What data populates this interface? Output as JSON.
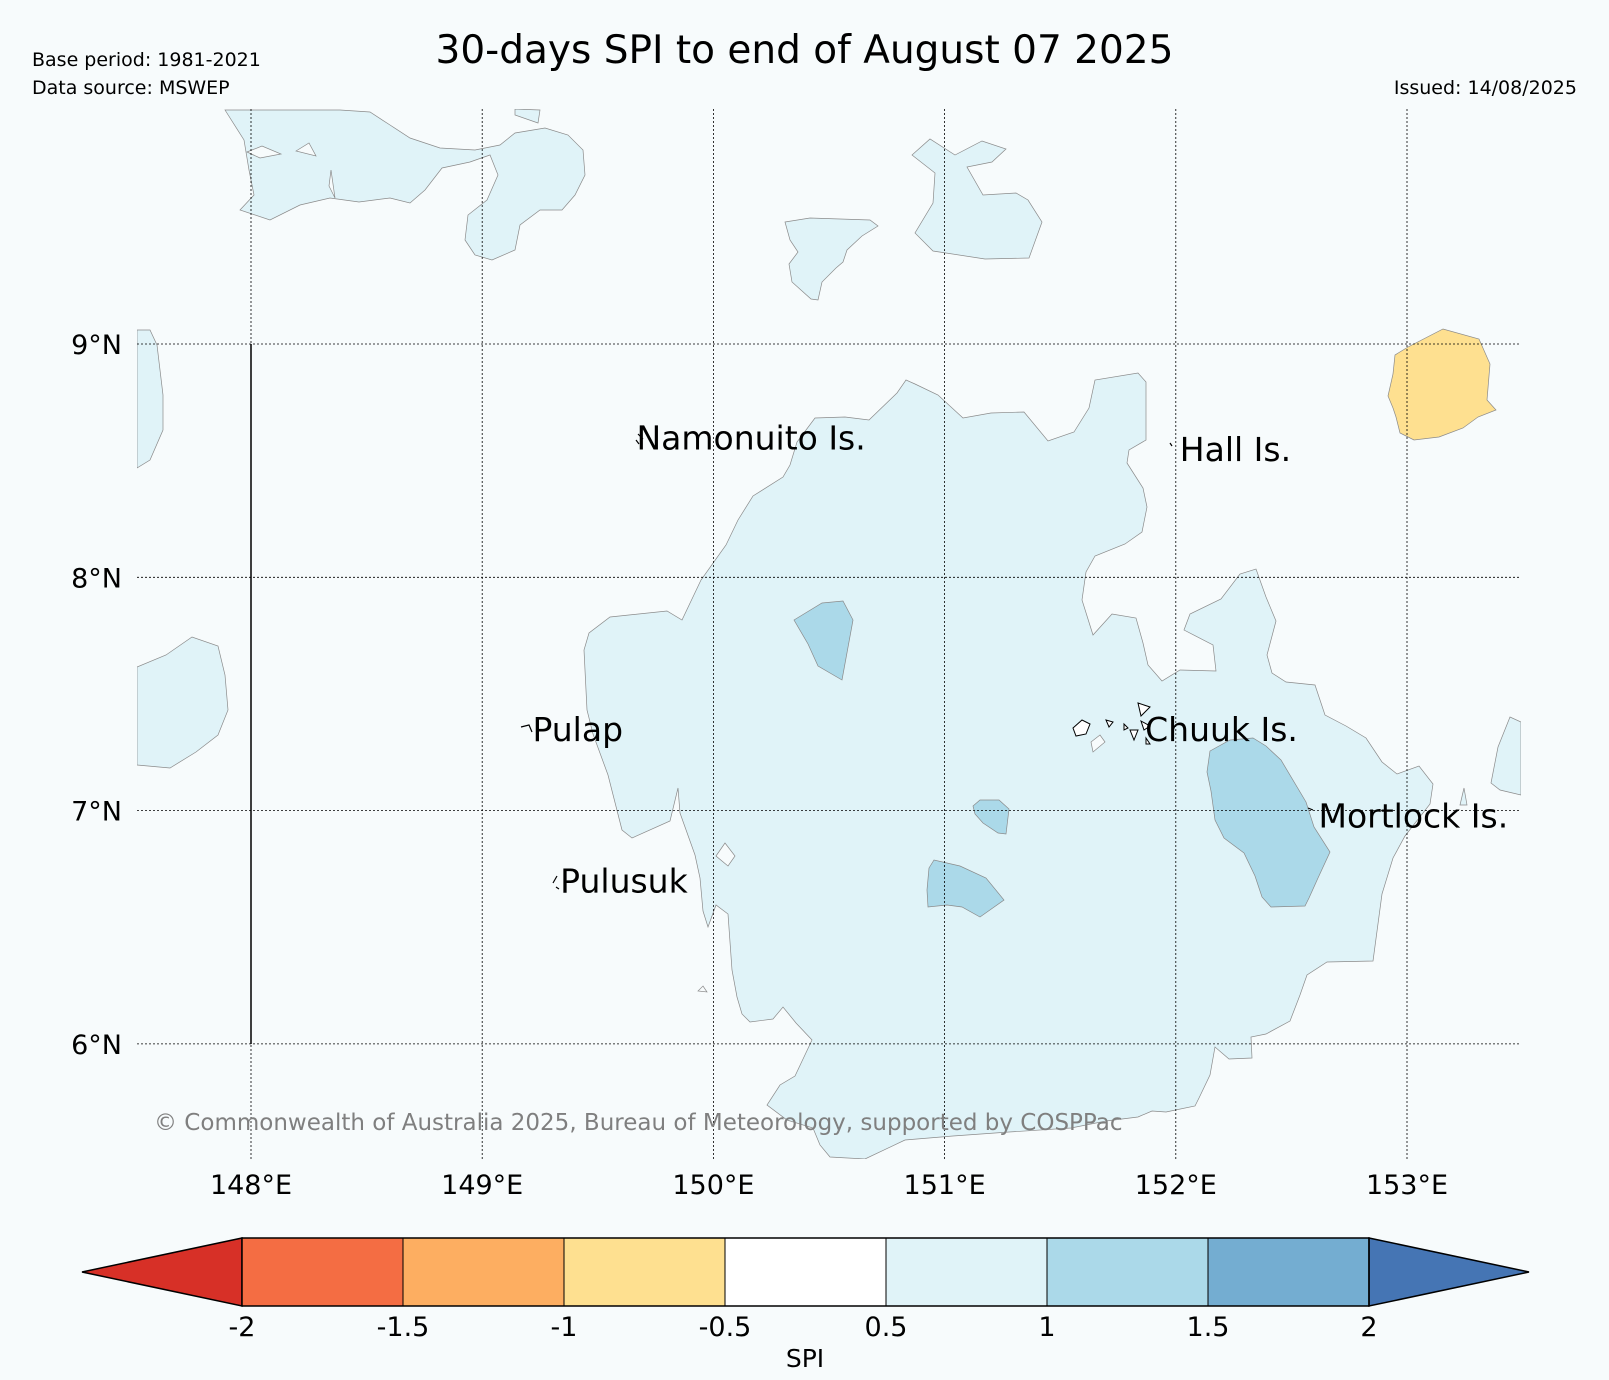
{
  "header": {
    "title": "30-days SPI to end of August 07 2025",
    "base_period": "Base period: 1981-2021",
    "data_source": "Data source: MSWEP",
    "issued": "Issued: 14/08/2025"
  },
  "map": {
    "lon_ticks": [
      "148°E",
      "149°E",
      "150°E",
      "151°E",
      "152°E",
      "153°E"
    ],
    "lat_ticks": [
      "9°N",
      "8°N",
      "7°N",
      "6°N"
    ],
    "lon_range": [
      147.5,
      153.5
    ],
    "lat_range": [
      5.5,
      10.0
    ],
    "gridlines": true,
    "places": [
      {
        "name": "Namonuito Is.",
        "lon": 149.65,
        "lat": 8.6
      },
      {
        "name": "Hall Is.",
        "lon": 152.0,
        "lat": 8.55
      },
      {
        "name": "Pulap",
        "lon": 149.2,
        "lat": 7.35
      },
      {
        "name": "Chuuk Is.",
        "lon": 151.85,
        "lat": 7.35
      },
      {
        "name": "Mortlock Is.",
        "lon": 152.6,
        "lat": 6.98
      },
      {
        "name": "Pulusuk",
        "lon": 149.32,
        "lat": 6.7
      }
    ],
    "copyright": "© Commonwealth of Australia 2025, Bureau of Meteorology, supported by COSPPac"
  },
  "colorbar": {
    "label": "SPI",
    "ticks": [
      "-2",
      "-1.5",
      "-1",
      "-0.5",
      "0.5",
      "1",
      "1.5",
      "2"
    ],
    "colors": [
      "#d73027",
      "#f46d43",
      "#fdae61",
      "#fee090",
      "#ffffff",
      "#e0f3f8",
      "#abd9e9",
      "#74add1",
      "#4575b4"
    ]
  },
  "colors": {
    "spi_0_5_to_1": "#e0f3f8",
    "spi_1_to_1_5": "#abd9e9",
    "spi_m1_to_m0_5": "#fee090",
    "background": "#f7fbfc"
  }
}
